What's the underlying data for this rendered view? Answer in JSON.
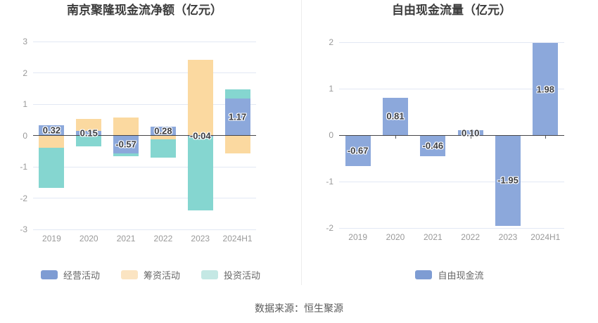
{
  "source_note": "数据来源：恒生聚源",
  "colors": {
    "grid_line": "#e2e8f4",
    "zero_line": "#46464a",
    "tick_mark": "#55565a",
    "axis_text": "#999999",
    "bar_label_text": "#3b3d43",
    "title_text": "#3c3c3c",
    "legend_text": "#666666",
    "source_text": "#595959",
    "divider": "#ececec",
    "series_blue": "#8ca8db",
    "series_orange": "#fbd9a0",
    "series_teal": "#85d6d0"
  },
  "chart_data": [
    {
      "type": "bar",
      "stacked": true,
      "title": "南京聚隆现金流净额（亿元）",
      "xlabel": "",
      "ylabel": "",
      "ylim": [
        -3,
        3
      ],
      "yticks": [
        3,
        2,
        1,
        0,
        -1,
        -2,
        -3
      ],
      "grid": true,
      "legend_position": "bottom",
      "categories": [
        "2019",
        "2020",
        "2021",
        "2022",
        "2023",
        "2024H1"
      ],
      "series": [
        {
          "id": "operating",
          "name": "经营活动",
          "color": "#8ca8db",
          "legend_color": "#7e9cd3",
          "values": [
            0.32,
            0.15,
            -0.57,
            0.28,
            -0.04,
            1.17
          ],
          "show_labels": true
        },
        {
          "id": "financing",
          "name": "筹资活动",
          "color": "#fbd9a0",
          "legend_color": "#fbe4c2",
          "values": [
            -0.4,
            0.37,
            0.58,
            -0.12,
            2.42,
            -0.58
          ],
          "show_labels": false
        },
        {
          "id": "investing",
          "name": "投资活动",
          "color": "#85d6d0",
          "legend_color": "#c4e8e4",
          "values": [
            -1.28,
            -0.35,
            -0.09,
            -0.59,
            -2.35,
            0.3
          ],
          "show_labels": false
        }
      ]
    },
    {
      "type": "bar",
      "stacked": false,
      "title": "自由现金流量（亿元）",
      "xlabel": "",
      "ylabel": "",
      "ylim": [
        -2,
        2
      ],
      "yticks": [
        2,
        1,
        0,
        -1,
        -2
      ],
      "grid": true,
      "legend_position": "bottom",
      "categories": [
        "2019",
        "2020",
        "2021",
        "2022",
        "2023",
        "2024H1"
      ],
      "series": [
        {
          "id": "free-cash-flow",
          "name": "自由现金流",
          "color": "#8ca8db",
          "legend_color": "#7e9cd3",
          "values": [
            -0.67,
            0.81,
            -0.46,
            0.1,
            -1.95,
            1.98
          ],
          "show_labels": true
        }
      ]
    }
  ]
}
